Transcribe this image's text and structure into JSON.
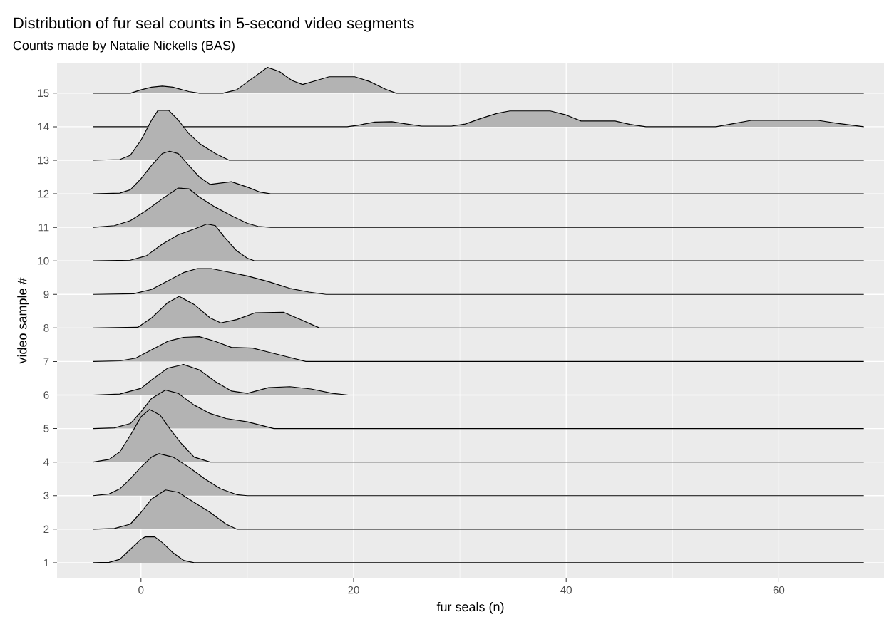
{
  "chart_data": {
    "type": "line",
    "title": "Distribution of fur seal counts in 5-second video segments",
    "subtitle": "Counts made by Natalie Nickells (BAS)",
    "xlabel": "fur seals (n)",
    "ylabel": "video sample #",
    "xlim": [
      -7.9,
      69.9
    ],
    "ylim": [
      0.53,
      15.91
    ],
    "xticks": [
      0,
      20,
      40,
      60
    ],
    "yticks": [
      1,
      2,
      3,
      4,
      5,
      6,
      7,
      8,
      9,
      10,
      11,
      12,
      13,
      14,
      15
    ],
    "grid": true,
    "marker": "none",
    "line_style": "solid",
    "series": [
      {
        "color": "#000000",
        "x": [
          -4.5,
          -3,
          -2,
          -1,
          0,
          0.4,
          1.3,
          2,
          3,
          4,
          5,
          68
        ],
        "values": [
          1,
          1.01,
          1.1,
          1.4,
          1.7,
          1.77,
          1.77,
          1.6,
          1.3,
          1.07,
          1,
          1
        ],
        "lower": [
          1,
          1,
          1,
          1,
          1,
          1,
          1,
          1,
          1,
          1,
          1,
          1
        ],
        "upper": [
          1,
          1.01,
          1.1,
          1.4,
          1.7,
          1.77,
          1.77,
          1.6,
          1.3,
          1.07,
          1,
          1
        ]
      },
      {
        "color": "#000000",
        "x": [
          -4.5,
          -2.5,
          -1,
          0,
          1,
          2.3,
          3.5,
          5,
          6.5,
          8,
          9,
          68
        ],
        "values": [
          2,
          2.02,
          2.15,
          2.5,
          2.9,
          3.17,
          3.1,
          2.8,
          2.5,
          2.15,
          2,
          2
        ],
        "lower": [
          2,
          2,
          2,
          2,
          2,
          2,
          2,
          2,
          2,
          2,
          2,
          2
        ],
        "upper": [
          2,
          2.02,
          2.15,
          2.5,
          2.9,
          3.17,
          3.1,
          2.8,
          2.5,
          2.15,
          2,
          2
        ]
      },
      {
        "color": "#000000",
        "x": [
          -4.5,
          -3,
          -2,
          -1,
          0,
          1,
          1.7,
          3,
          4.5,
          6,
          7.5,
          9,
          10,
          68
        ],
        "values": [
          3,
          3.05,
          3.2,
          3.5,
          3.85,
          4.15,
          4.25,
          4.15,
          3.85,
          3.5,
          3.2,
          3.03,
          3,
          3
        ],
        "lower": [
          3,
          3,
          3,
          3,
          3,
          3,
          3,
          3,
          3,
          3,
          3,
          3,
          3,
          3
        ],
        "upper": [
          3,
          3.05,
          3.2,
          3.5,
          3.85,
          4.15,
          4.25,
          4.15,
          3.85,
          3.5,
          3.2,
          3.03,
          3,
          3
        ]
      },
      {
        "color": "#000000",
        "x": [
          -4.5,
          -3,
          -2,
          -1,
          0,
          0.8,
          1.8,
          2.7,
          3.8,
          5,
          6.5,
          68
        ],
        "values": [
          4,
          4.08,
          4.3,
          4.8,
          5.35,
          5.57,
          5.4,
          5,
          4.55,
          4.15,
          4,
          4
        ],
        "lower": [
          4,
          4,
          4,
          4,
          4,
          4,
          4,
          4,
          4,
          4,
          4,
          4
        ],
        "upper": [
          4,
          4.08,
          4.3,
          4.8,
          5.35,
          5.57,
          5.4,
          5,
          4.55,
          4.15,
          4,
          4
        ]
      },
      {
        "color": "#000000",
        "x": [
          -4.5,
          -2.5,
          -1,
          0,
          1,
          2.3,
          3.5,
          5,
          6.5,
          8,
          10,
          11,
          12.5,
          68
        ],
        "values": [
          5,
          5.02,
          5.15,
          5.5,
          5.9,
          6.15,
          6.05,
          5.7,
          5.45,
          5.3,
          5.2,
          5.12,
          5,
          5
        ],
        "lower": [
          5,
          5,
          5,
          5,
          5,
          5,
          5,
          5,
          5,
          5,
          5,
          5,
          5,
          5
        ],
        "upper": [
          5,
          5.02,
          5.15,
          5.5,
          5.9,
          6.15,
          6.05,
          5.7,
          5.45,
          5.3,
          5.2,
          5.12,
          5,
          5
        ]
      },
      {
        "color": "#000000",
        "x": [
          -4.5,
          -2,
          0,
          1,
          2.5,
          4,
          5.5,
          7,
          8.5,
          10,
          12,
          14,
          16,
          18,
          19.5,
          68
        ],
        "values": [
          6,
          6.03,
          6.2,
          6.45,
          6.8,
          6.91,
          6.75,
          6.4,
          6.12,
          6.05,
          6.22,
          6.25,
          6.18,
          6.05,
          6,
          6
        ],
        "lower": [
          6,
          6,
          6,
          6,
          6,
          6,
          6,
          6,
          6,
          6,
          6,
          6,
          6,
          6,
          6,
          6
        ],
        "upper": [
          6,
          6.03,
          6.2,
          6.45,
          6.8,
          6.91,
          6.75,
          6.4,
          6.12,
          6.05,
          6.22,
          6.25,
          6.18,
          6.05,
          6,
          6
        ]
      },
      {
        "color": "#000000",
        "x": [
          -4.5,
          -2,
          -0.5,
          1,
          2.5,
          4,
          5.5,
          7,
          8.5,
          10.5,
          12,
          14,
          15.5,
          68
        ],
        "values": [
          7,
          7.02,
          7.1,
          7.35,
          7.6,
          7.72,
          7.74,
          7.6,
          7.42,
          7.4,
          7.28,
          7.12,
          7,
          7
        ],
        "lower": [
          7,
          7,
          7,
          7,
          7,
          7,
          7,
          7,
          7,
          7,
          7,
          7,
          7,
          7
        ],
        "upper": [
          7,
          7.02,
          7.1,
          7.35,
          7.6,
          7.72,
          7.74,
          7.6,
          7.42,
          7.4,
          7.28,
          7.12,
          7,
          7
        ]
      },
      {
        "color": "#000000",
        "x": [
          -4.5,
          -0.3,
          1,
          2.5,
          3.6,
          5,
          6.5,
          7.5,
          9,
          10.7,
          13.4,
          15,
          16.8,
          68
        ],
        "values": [
          8,
          8.02,
          8.3,
          8.75,
          8.94,
          8.7,
          8.3,
          8.15,
          8.25,
          8.45,
          8.47,
          8.25,
          8,
          8
        ],
        "lower": [
          8,
          8,
          8,
          8,
          8,
          8,
          8,
          8,
          8,
          8,
          8,
          8,
          8,
          8
        ],
        "upper": [
          8,
          8.02,
          8.3,
          8.75,
          8.94,
          8.7,
          8.3,
          8.15,
          8.25,
          8.45,
          8.47,
          8.25,
          8,
          8
        ]
      },
      {
        "color": "#000000",
        "x": [
          -4.5,
          -0.7,
          1,
          2.5,
          4,
          5.3,
          6.6,
          8,
          10,
          12,
          14,
          15.8,
          17.4,
          68
        ],
        "values": [
          9,
          9.02,
          9.15,
          9.4,
          9.65,
          9.77,
          9.77,
          9.68,
          9.55,
          9.38,
          9.18,
          9.07,
          9,
          9
        ],
        "lower": [
          9,
          9,
          9,
          9,
          9,
          9,
          9,
          9,
          9,
          9,
          9,
          9,
          9,
          9
        ],
        "upper": [
          9,
          9.02,
          9.15,
          9.4,
          9.65,
          9.77,
          9.77,
          9.68,
          9.55,
          9.38,
          9.18,
          9.07,
          9,
          9
        ]
      },
      {
        "color": "#000000",
        "x": [
          -4.5,
          -1,
          0.5,
          2,
          3.5,
          5,
          6.2,
          7,
          8,
          9,
          10,
          10.7,
          68
        ],
        "values": [
          10,
          10.02,
          10.15,
          10.5,
          10.78,
          10.95,
          11.1,
          11.05,
          10.65,
          10.3,
          10.08,
          10,
          10
        ],
        "lower": [
          10,
          10,
          10,
          10,
          10,
          10,
          10,
          10,
          10,
          10,
          10,
          10,
          10
        ],
        "upper": [
          10,
          10.02,
          10.15,
          10.5,
          10.78,
          10.95,
          11.1,
          11.05,
          10.65,
          10.3,
          10.08,
          10,
          10
        ]
      },
      {
        "color": "#000000",
        "x": [
          -4.5,
          -2.5,
          -1,
          0.5,
          2,
          3.5,
          4.5,
          5.5,
          7,
          8.5,
          10,
          11,
          12.2,
          68
        ],
        "values": [
          11,
          11.05,
          11.2,
          11.5,
          11.85,
          12.17,
          12.15,
          11.9,
          11.6,
          11.35,
          11.12,
          11.03,
          11,
          11
        ],
        "lower": [
          11,
          11,
          11,
          11,
          11,
          11,
          11,
          11,
          11,
          11,
          11,
          11,
          11,
          11
        ],
        "upper": [
          11,
          11.05,
          11.2,
          11.5,
          11.85,
          12.17,
          12.15,
          11.9,
          11.6,
          11.35,
          11.12,
          11.03,
          11,
          11
        ]
      },
      {
        "color": "#000000",
        "x": [
          -4.5,
          -2,
          -1,
          0,
          1,
          2,
          2.7,
          3.5,
          4.5,
          5.5,
          6.5,
          8.5,
          10,
          11.2,
          12.2,
          68
        ],
        "values": [
          12,
          12.02,
          12.12,
          12.45,
          12.85,
          13.2,
          13.27,
          13.2,
          12.85,
          12.5,
          12.28,
          12.36,
          12.2,
          12.05,
          12,
          12
        ],
        "lower": [
          12,
          12,
          12,
          12,
          12,
          12,
          12,
          12,
          12,
          12,
          12,
          12,
          12,
          12,
          12,
          12
        ],
        "upper": [
          12,
          12.02,
          12.12,
          12.45,
          12.85,
          13.2,
          13.27,
          13.2,
          12.85,
          12.5,
          12.28,
          12.36,
          12.2,
          12.05,
          12,
          12
        ]
      },
      {
        "color": "#000000",
        "x": [
          -4.5,
          -2,
          -1,
          0,
          1,
          1.6,
          2.6,
          3.5,
          4.5,
          5.5,
          7,
          8.3,
          68
        ],
        "values": [
          13,
          13.02,
          13.15,
          13.6,
          14.2,
          14.49,
          14.49,
          14.2,
          13.8,
          13.5,
          13.2,
          13,
          13
        ],
        "lower": [
          13,
          13,
          13,
          13,
          13,
          13,
          13,
          13,
          13,
          13,
          13,
          13,
          13
        ],
        "upper": [
          13,
          13.02,
          13.15,
          13.6,
          14.2,
          14.49,
          14.49,
          14.2,
          13.8,
          13.5,
          13.2,
          13,
          13
        ]
      },
      {
        "color": "#000000",
        "x": [
          -4.5,
          19.4,
          20.5,
          22,
          23.6,
          25,
          26.4,
          29.2,
          30.5,
          32,
          33.5,
          34.7,
          38.5,
          40,
          41.4,
          44.6,
          46,
          47.5,
          54.1,
          55.5,
          57.4,
          63.7,
          65.5,
          68
        ],
        "values": [
          14,
          14,
          14.05,
          14.14,
          14.15,
          14.08,
          14.02,
          14.02,
          14.08,
          14.25,
          14.4,
          14.47,
          14.47,
          14.35,
          14.17,
          14.17,
          14.07,
          14,
          14,
          14.08,
          14.19,
          14.19,
          14.1,
          14
        ],
        "lower": [
          14,
          14,
          14,
          14,
          14,
          14,
          14,
          14,
          14,
          14,
          14,
          14,
          14,
          14,
          14,
          14,
          14,
          14,
          14,
          14,
          14,
          14,
          14,
          14
        ],
        "upper": [
          14,
          14,
          14.05,
          14.14,
          14.15,
          14.08,
          14.02,
          14.02,
          14.08,
          14.25,
          14.4,
          14.47,
          14.47,
          14.35,
          14.17,
          14.17,
          14.07,
          14,
          14,
          14.08,
          14.19,
          14.19,
          14.1,
          14
        ]
      },
      {
        "color": "#000000",
        "x": [
          -4.5,
          -1,
          0,
          1,
          2,
          3,
          4.5,
          5.5,
          7.7,
          9,
          10.5,
          11.9,
          13,
          14.2,
          15.2,
          16.5,
          17.7,
          20.1,
          21.5,
          23,
          24,
          68
        ],
        "values": [
          15,
          15,
          15.1,
          15.18,
          15.21,
          15.18,
          15.05,
          15,
          15,
          15.1,
          15.45,
          15.77,
          15.65,
          15.38,
          15.26,
          15.38,
          15.49,
          15.49,
          15.35,
          15.12,
          15,
          15
        ],
        "lower": [
          15,
          15,
          15,
          15,
          15,
          15,
          15,
          15,
          15,
          15,
          15,
          15,
          15,
          15,
          15,
          15,
          15,
          15,
          15,
          15,
          15,
          15
        ],
        "upper": [
          15,
          15,
          15.1,
          15.18,
          15.21,
          15.18,
          15.05,
          15,
          15,
          15.1,
          15.45,
          15.77,
          15.65,
          15.38,
          15.26,
          15.38,
          15.49,
          15.49,
          15.35,
          15.12,
          15,
          15
        ]
      }
    ]
  }
}
